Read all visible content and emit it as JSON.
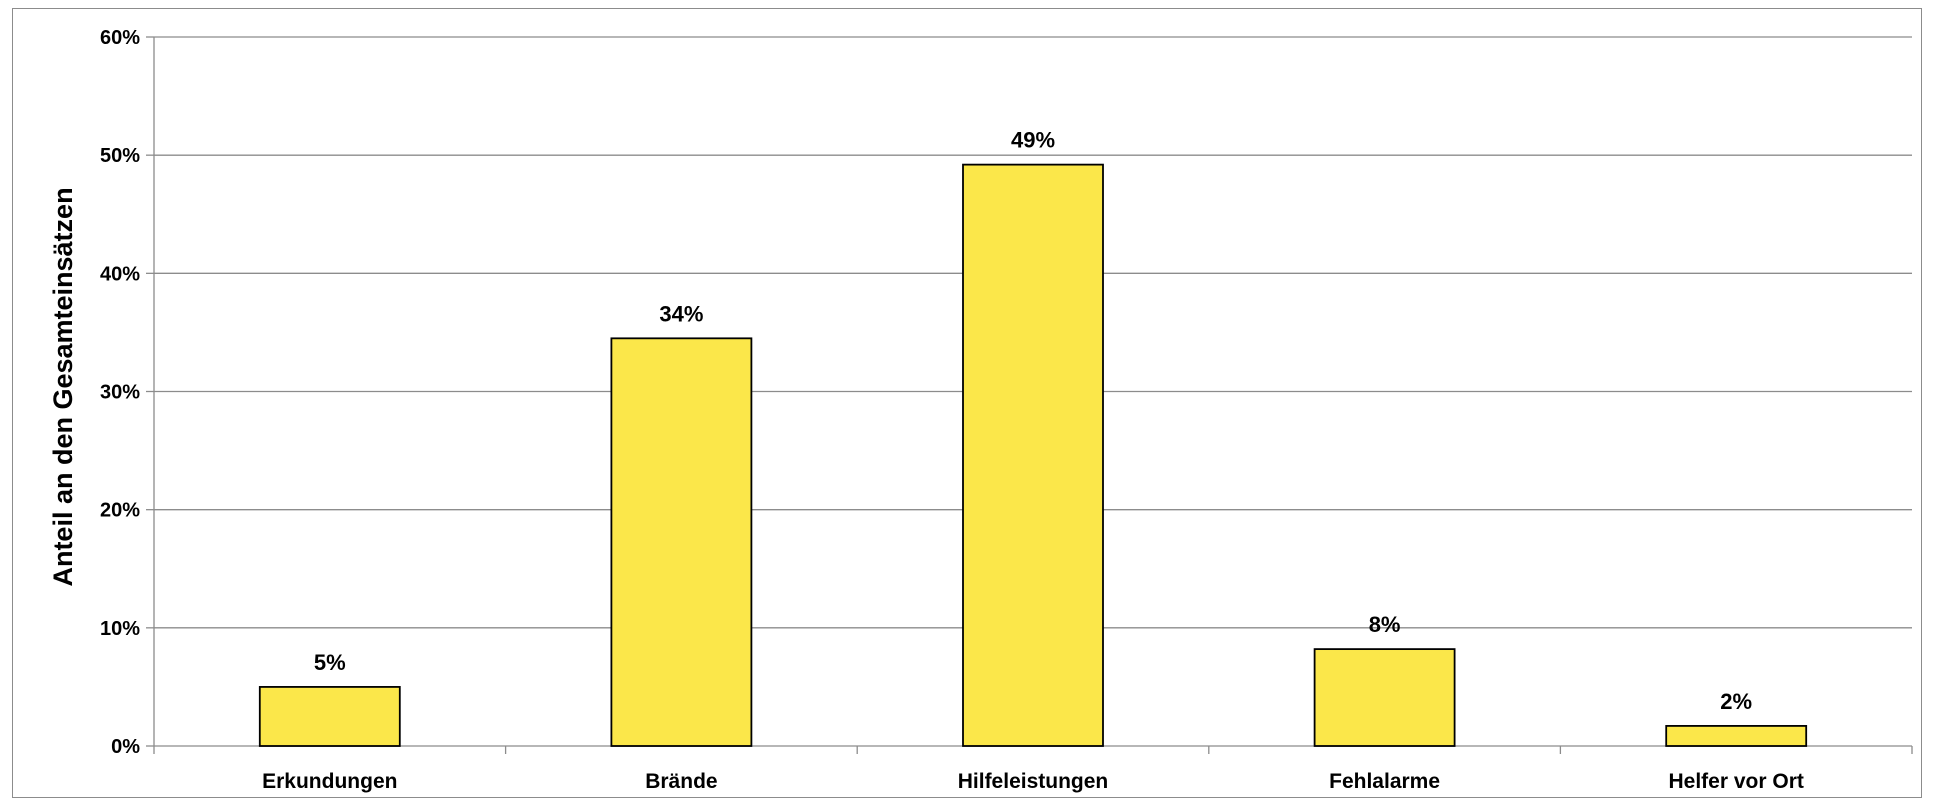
{
  "chart_data": {
    "type": "bar",
    "title": "",
    "xlabel": "",
    "ylabel": "Anteil an den Gesamteinsätzen",
    "categories": [
      "Erkundungen",
      "Brände",
      "Hilfeleistungen",
      "Fehlalarme",
      "Helfer vor Ort"
    ],
    "values": [
      0.05,
      0.345,
      0.492,
      0.082,
      0.017
    ],
    "data_labels": [
      "5%",
      "34%",
      "49%",
      "8%",
      "2%"
    ],
    "ylim": [
      0,
      0.6
    ],
    "yticks": [
      0,
      0.1,
      0.2,
      0.3,
      0.4,
      0.5,
      0.6
    ],
    "ytick_labels": [
      "0%",
      "10%",
      "20%",
      "30%",
      "40%",
      "50%",
      "60%"
    ],
    "grid": true,
    "legend": "none",
    "colors": {
      "bar_fill": "#fbe74a",
      "bar_stroke": "#000000",
      "gridline": "#8c8c8c",
      "axis": "#8c8c8c"
    }
  }
}
